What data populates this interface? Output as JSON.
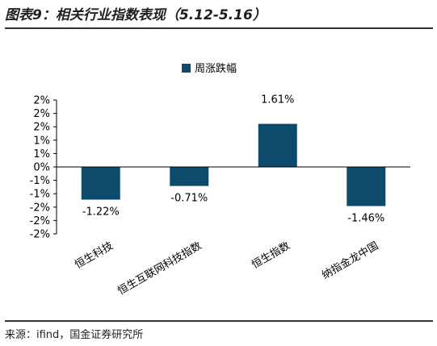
{
  "header": {
    "title": "图表9：相关行业指数表现（5.12-5.16）"
  },
  "footer": {
    "source": "来源：ifind，国金证券研究所"
  },
  "chart_data": {
    "type": "bar",
    "categories": [
      "恒生科技",
      "恒生互联网科技指数",
      "恒生指数",
      "纳指金龙中国"
    ],
    "series": [
      {
        "name": "周涨跌幅",
        "values": [
          -1.22,
          -0.71,
          1.61,
          -1.46
        ]
      }
    ],
    "data_labels": [
      "-1.22%",
      "-0.71%",
      "1.61%",
      "-1.46%"
    ],
    "y_ticks": [
      "2%",
      "2%",
      "2%",
      "1%",
      "1%",
      "0%",
      "-1%",
      "-1%",
      "-2%",
      "-2%",
      "-2%"
    ],
    "y_tick_values": [
      2.5,
      2.0,
      1.5,
      1.0,
      0.5,
      0,
      -0.5,
      -1.0,
      -1.5,
      -2.0,
      -2.5
    ],
    "ylim": [
      -2.5,
      2.5
    ],
    "legend_position": "top-center",
    "colors": {
      "bar": "#0d4a6b",
      "axis": "#000000"
    }
  }
}
